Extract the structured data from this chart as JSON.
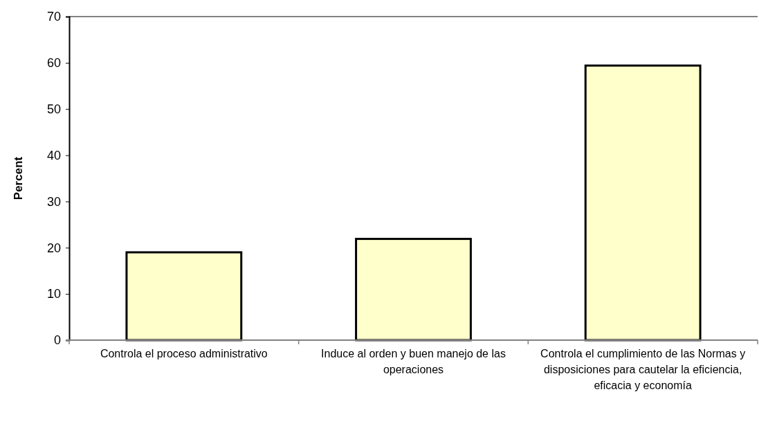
{
  "chart_data": {
    "type": "bar",
    "ylabel": "Percent",
    "categories": [
      "Controla el proceso administrativo",
      "Induce al orden y buen manejo de las operaciones",
      "Controla el cumplimiento de las Normas y disposiciones para cautelar la eficiencia, eficacia y economía"
    ],
    "values": [
      19.0,
      21.9,
      59.4
    ],
    "color": "#ffffcc",
    "ylim": [
      0,
      70
    ],
    "yticks": [
      0,
      10,
      20,
      30,
      40,
      50,
      60,
      70
    ],
    "grid": false
  }
}
